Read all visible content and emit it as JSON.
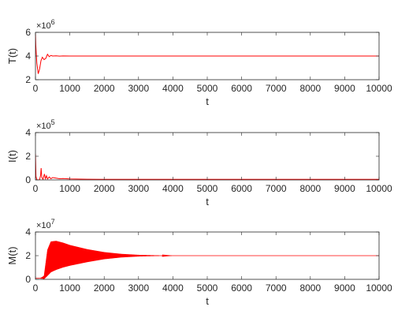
{
  "chart_data": [
    {
      "type": "line",
      "ylabel": "T(t)",
      "xlabel": "t",
      "xlim": [
        0,
        10000
      ],
      "ylim": [
        2,
        6
      ],
      "x_ticks": [
        "0",
        "1000",
        "2000",
        "3000",
        "4000",
        "5000",
        "6000",
        "7000",
        "8000",
        "9000",
        "10000"
      ],
      "y_ticks": [
        "2",
        "4",
        "6"
      ],
      "exponent_base": "×10",
      "exponent_power": "6",
      "line_color": "#ff0000",
      "series": [
        {
          "x": [
            0,
            10,
            40,
            80,
            120,
            160,
            200,
            250,
            300,
            350,
            400,
            450,
            500,
            600,
            700,
            800,
            1000,
            1500,
            2000,
            10000
          ],
          "y": [
            5.9,
            4.9,
            3.4,
            2.5,
            2.9,
            3.6,
            3.9,
            3.7,
            3.8,
            4.15,
            3.95,
            4.05,
            4.0,
            4.02,
            3.99,
            4.01,
            4.0,
            4.0,
            4.0,
            4.0
          ]
        }
      ]
    },
    {
      "type": "line",
      "ylabel": "I(t)",
      "xlabel": "t",
      "xlim": [
        0,
        10000
      ],
      "ylim": [
        0,
        4
      ],
      "x_ticks": [
        "0",
        "1000",
        "2000",
        "3000",
        "4000",
        "5000",
        "6000",
        "7000",
        "8000",
        "9000",
        "10000"
      ],
      "y_ticks": [
        "0",
        "2",
        "4"
      ],
      "exponent_base": "×10",
      "exponent_power": "5",
      "line_color": "#ff0000",
      "series": [
        {
          "x": [
            0,
            15,
            40,
            80,
            120,
            150,
            165,
            185,
            220,
            260,
            290,
            320,
            350,
            400,
            450,
            500,
            600,
            700,
            800,
            1000,
            1500,
            2000,
            10000
          ],
          "y": [
            2.2,
            0.3,
            0.02,
            0.0,
            0.02,
            0.4,
            1.0,
            0.2,
            0.05,
            0.5,
            0.1,
            0.35,
            0.08,
            0.25,
            0.1,
            0.2,
            0.15,
            0.1,
            0.12,
            0.08,
            0.06,
            0.05,
            0.05
          ]
        }
      ]
    },
    {
      "type": "line",
      "ylabel": "M(t)",
      "xlabel": "t",
      "xlim": [
        0,
        10000
      ],
      "ylim": [
        0,
        4
      ],
      "x_ticks": [
        "0",
        "1000",
        "2000",
        "3000",
        "4000",
        "5000",
        "6000",
        "7000",
        "8000",
        "9000",
        "10000"
      ],
      "y_ticks": [
        "0",
        "2",
        "4"
      ],
      "exponent_base": "×10",
      "exponent_power": "7",
      "line_color": "#ff0000",
      "upper_envelope": {
        "x": [
          0,
          150,
          250,
          350,
          450,
          600,
          800,
          1000,
          1500,
          2000,
          2500,
          3000,
          3500,
          4000,
          10000
        ],
        "y": [
          0.1,
          0.1,
          0.3,
          2.5,
          3.2,
          3.25,
          3.1,
          2.9,
          2.55,
          2.3,
          2.15,
          2.07,
          2.03,
          2.0,
          2.0
        ]
      },
      "lower_envelope": {
        "x": [
          0,
          150,
          250,
          350,
          450,
          600,
          800,
          1000,
          1500,
          2000,
          2500,
          3000,
          3500,
          4000,
          10000
        ],
        "y": [
          0.1,
          0.1,
          0.02,
          0.3,
          0.6,
          0.8,
          1.0,
          1.15,
          1.45,
          1.7,
          1.85,
          1.93,
          1.97,
          2.0,
          2.0
        ]
      }
    }
  ]
}
